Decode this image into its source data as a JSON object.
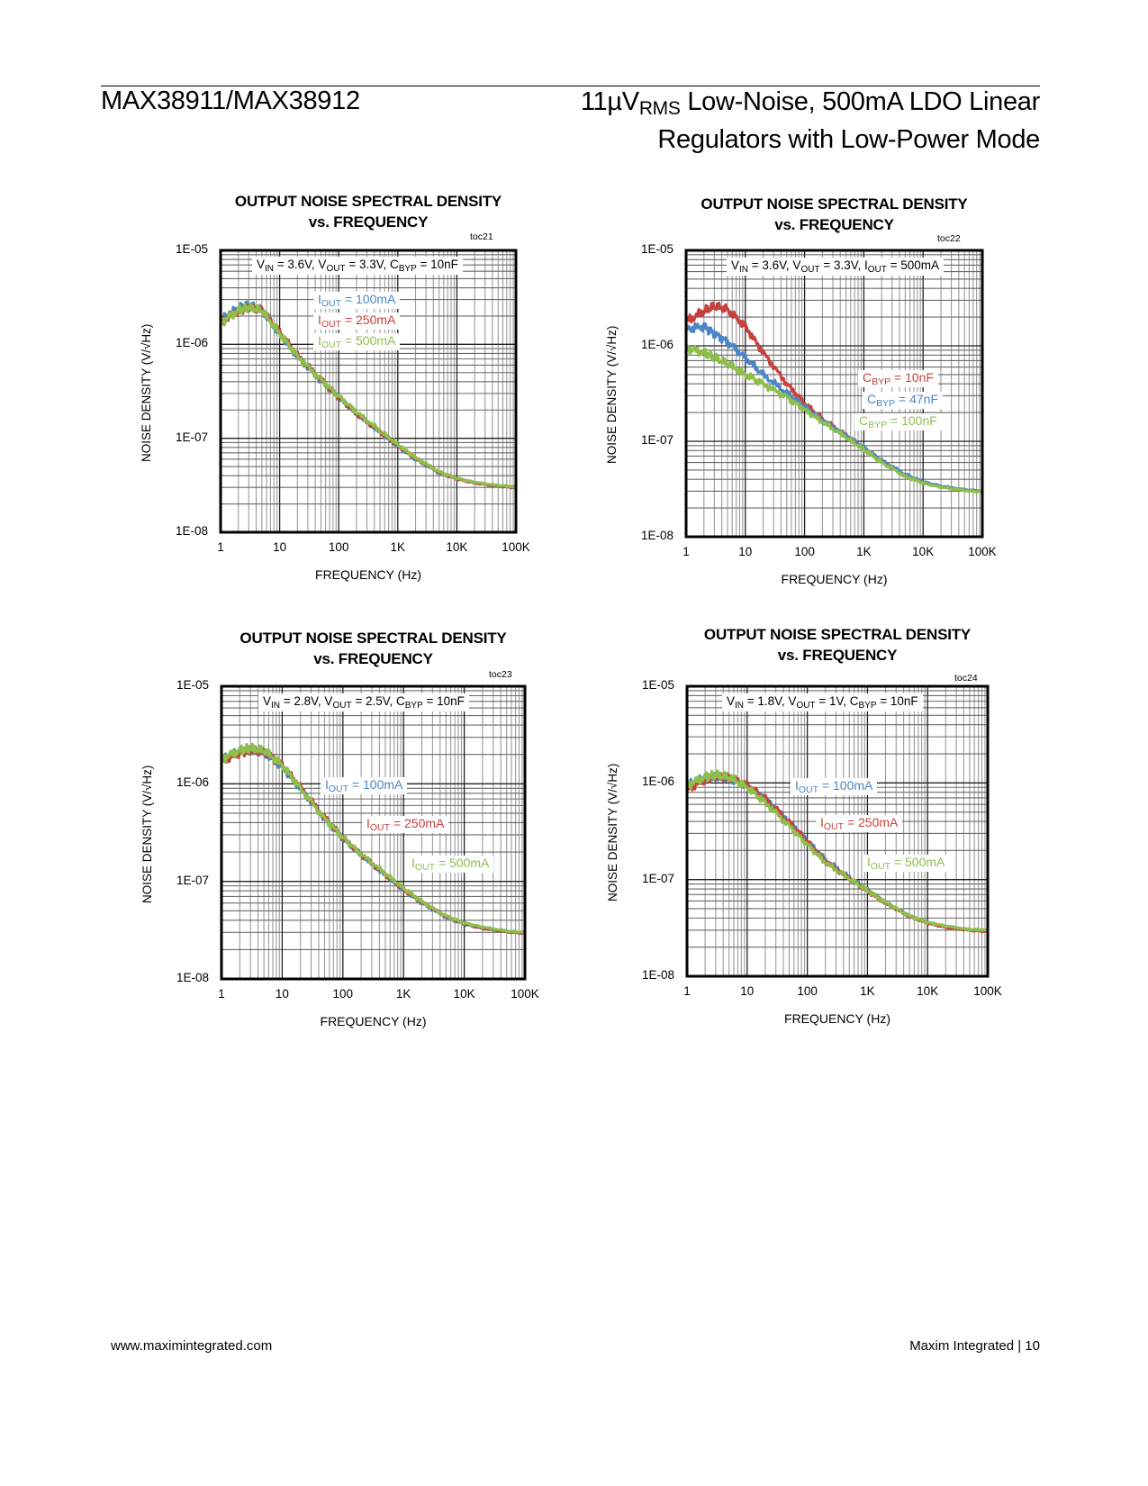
{
  "header": {
    "part_number": "MAX38911/MAX38912",
    "title_prefix": "11µV",
    "title_sub": "RMS",
    "title_rest_line1": " Low-Noise, 500mA LDO Linear",
    "title_line2": "Regulators with Low-Power Mode"
  },
  "footer": {
    "website": "www.maximintegrated.com",
    "company_page": "Maxim Integrated | 10"
  },
  "colors": {
    "blue": "#4a86c8",
    "red": "#c8403c",
    "green": "#8dbf4a"
  },
  "chart_data": [
    {
      "id": "toc21",
      "type": "line",
      "title_line1": "OUTPUT NOISE SPECTRAL DENSITY",
      "title_line2": "vs. FREQUENCY",
      "toc": "toc21",
      "xlabel": "FREQUENCY (Hz)",
      "ylabel": "NOISE DENSITY (V/√Hz)",
      "xscale": "log",
      "yscale": "log",
      "xlim": [
        1,
        100000
      ],
      "ylim": [
        1e-08,
        1e-05
      ],
      "xticks": [
        "1",
        "10",
        "100",
        "1K",
        "10K",
        "100K"
      ],
      "yticks": [
        "1E-05",
        "1E-06",
        "1E-07",
        "1E-08"
      ],
      "grid": true,
      "conditions": {
        "p1": "V",
        "s1": "IN",
        "t1": " = 3.6V, V",
        "s2": "OUT",
        "t2": " = 3.3V, C",
        "s3": "BYP",
        "t3": " = 10nF"
      },
      "legend_position": "upper-center",
      "series": [
        {
          "name_main": "I",
          "name_sub": "OUT",
          "name_rest": " = 100mA",
          "color": "blue",
          "x": [
            1,
            2,
            3,
            5,
            10,
            20,
            50,
            100,
            200,
            500,
            1000,
            2000,
            5000,
            10000,
            20000,
            50000,
            100000
          ],
          "y": [
            1.8e-06,
            2.4e-06,
            2.6e-06,
            2.3e-06,
            1.3e-06,
            7.5e-07,
            4.1e-07,
            2.7e-07,
            1.8e-07,
            1.15e-07,
            8.3e-08,
            6e-08,
            4.3e-08,
            3.7e-08,
            3.35e-08,
            3.1e-08,
            3e-08
          ]
        },
        {
          "name_main": "I",
          "name_sub": "OUT",
          "name_rest": " = 250mA",
          "color": "red",
          "x": [
            1,
            2,
            3,
            5,
            10,
            20,
            50,
            100,
            200,
            500,
            1000,
            2000,
            5000,
            10000,
            20000,
            50000,
            100000
          ],
          "y": [
            1.75e-06,
            2.3e-06,
            2.5e-06,
            2.35e-06,
            1.35e-06,
            7.6e-07,
            4.2e-07,
            2.75e-07,
            1.85e-07,
            1.18e-07,
            8.4e-08,
            6.1e-08,
            4.35e-08,
            3.7e-08,
            3.35e-08,
            3.1e-08,
            3e-08
          ]
        },
        {
          "name_main": "I",
          "name_sub": "OUT",
          "name_rest": " = 500mA",
          "color": "green",
          "x": [
            1,
            2,
            3,
            5,
            10,
            20,
            50,
            100,
            200,
            500,
            1000,
            2000,
            5000,
            10000,
            20000,
            50000,
            100000
          ],
          "y": [
            1.7e-06,
            2.3e-06,
            2.45e-06,
            2.3e-06,
            1.3e-06,
            7.5e-07,
            4.2e-07,
            2.8e-07,
            1.9e-07,
            1.2e-07,
            8.6e-08,
            6.2e-08,
            4.4e-08,
            3.75e-08,
            3.4e-08,
            3.15e-08,
            3.05e-08
          ]
        }
      ]
    },
    {
      "id": "toc22",
      "type": "line",
      "title_line1": "OUTPUT NOISE SPECTRAL DENSITY",
      "title_line2": "vs. FREQUENCY",
      "toc": "toc22",
      "xlabel": "FREQUENCY (Hz)",
      "ylabel": "NOISE DENSITY (V/√Hz)",
      "xscale": "log",
      "yscale": "log",
      "xlim": [
        1,
        100000
      ],
      "ylim": [
        1e-08,
        1e-05
      ],
      "xticks": [
        "1",
        "10",
        "100",
        "1K",
        "10K",
        "100K"
      ],
      "yticks": [
        "1E-05",
        "1E-06",
        "1E-07",
        "1E-08"
      ],
      "grid": true,
      "conditions": {
        "p1": "V",
        "s1": "IN",
        "t1": " = 3.6V, V",
        "s2": "OUT",
        "t2": " = 3.3V, I",
        "s3": "OUT",
        "t3": " = 500mA"
      },
      "legend_position": "right",
      "series": [
        {
          "name_main": "C",
          "name_sub": "BYP",
          "name_rest": " = 10nF",
          "color": "red",
          "x": [
            1,
            2,
            3,
            5,
            10,
            20,
            50,
            100,
            200,
            500,
            1000,
            2000,
            5000,
            10000,
            20000,
            50000,
            100000
          ],
          "y": [
            1.8e-06,
            2.3e-06,
            2.6e-06,
            2.4e-06,
            1.6e-06,
            8.5e-07,
            4e-07,
            2.5e-07,
            1.7e-07,
            1.15e-07,
            8.5e-08,
            6.2e-08,
            4.4e-08,
            3.7e-08,
            3.35e-08,
            3.1e-08,
            3e-08
          ]
        },
        {
          "name_main": "C",
          "name_sub": "BYP",
          "name_rest": " = 47nF",
          "color": "blue",
          "x": [
            1,
            2,
            3,
            5,
            10,
            20,
            50,
            100,
            200,
            500,
            1000,
            2000,
            5000,
            10000,
            20000,
            50000,
            100000
          ],
          "y": [
            1.5e-06,
            1.6e-06,
            1.35e-06,
            1.1e-06,
            7.5e-07,
            5e-07,
            3.2e-07,
            2.3e-07,
            1.65e-07,
            1.15e-07,
            8.6e-08,
            6.3e-08,
            4.5e-08,
            3.75e-08,
            3.4e-08,
            3.1e-08,
            3e-08
          ]
        },
        {
          "name_main": "C",
          "name_sub": "BYP",
          "name_rest": " = 100nF",
          "color": "green",
          "x": [
            1,
            2,
            3,
            5,
            10,
            20,
            50,
            100,
            200,
            500,
            1000,
            2000,
            5000,
            10000,
            20000,
            50000,
            100000
          ],
          "y": [
            9.5e-07,
            8.5e-07,
            7.5e-07,
            6.5e-07,
            5e-07,
            4e-07,
            2.9e-07,
            2.15e-07,
            1.6e-07,
            1.1e-07,
            8.2e-08,
            6e-08,
            4.3e-08,
            3.65e-08,
            3.3e-08,
            3.05e-08,
            2.95e-08
          ]
        }
      ]
    },
    {
      "id": "toc23",
      "type": "line",
      "title_line1": "OUTPUT NOISE SPECTRAL DENSITY",
      "title_line2": "vs. FREQUENCY",
      "toc": "toc23",
      "xlabel": "FREQUENCY (Hz)",
      "ylabel": "NOISE DENSITY (V/√Hz)",
      "xscale": "log",
      "yscale": "log",
      "xlim": [
        1,
        100000
      ],
      "ylim": [
        1e-08,
        1e-05
      ],
      "xticks": [
        "1",
        "10",
        "100",
        "1K",
        "10K",
        "100K"
      ],
      "yticks": [
        "1E-05",
        "1E-06",
        "1E-07",
        "1E-08"
      ],
      "grid": true,
      "conditions": {
        "p1": "V",
        "s1": "IN",
        "t1": " = 2.8V, V",
        "s2": "OUT",
        "t2": " = 2.5V, C",
        "s3": "BYP",
        "t3": " = 10nF"
      },
      "legend_position": "staggered-right",
      "series": [
        {
          "name_main": "I",
          "name_sub": "OUT",
          "name_rest": " = 100mA",
          "color": "blue",
          "x": [
            1,
            2,
            3,
            5,
            10,
            20,
            50,
            100,
            200,
            500,
            1000,
            2000,
            5000,
            10000,
            20000,
            50000,
            100000
          ],
          "y": [
            1.75e-06,
            2.1e-06,
            2.2e-06,
            2.1e-06,
            1.5e-06,
            9e-07,
            4.4e-07,
            2.75e-07,
            1.85e-07,
            1.15e-07,
            8.2e-08,
            6e-08,
            4.3e-08,
            3.65e-08,
            3.3e-08,
            3.05e-08,
            2.95e-08
          ]
        },
        {
          "name_main": "I",
          "name_sub": "OUT",
          "name_rest": " = 250mA",
          "color": "red",
          "x": [
            1,
            2,
            3,
            5,
            10,
            20,
            50,
            100,
            200,
            500,
            1000,
            2000,
            5000,
            10000,
            20000,
            50000,
            100000
          ],
          "y": [
            1.7e-06,
            2.1e-06,
            2.25e-06,
            2.15e-06,
            1.55e-06,
            9.2e-07,
            4.5e-07,
            2.8e-07,
            1.9e-07,
            1.18e-07,
            8.3e-08,
            6.1e-08,
            4.35e-08,
            3.7e-08,
            3.3e-08,
            3.05e-08,
            2.95e-08
          ]
        },
        {
          "name_main": "I",
          "name_sub": "OUT",
          "name_rest": " = 500mA",
          "color": "green",
          "x": [
            1,
            2,
            3,
            5,
            10,
            20,
            50,
            100,
            200,
            500,
            1000,
            2000,
            5000,
            10000,
            20000,
            50000,
            100000
          ],
          "y": [
            1.8e-06,
            2.2e-06,
            2.3e-06,
            2.2e-06,
            1.55e-06,
            9e-07,
            4.4e-07,
            2.8e-07,
            1.9e-07,
            1.2e-07,
            8.5e-08,
            6.2e-08,
            4.4e-08,
            3.75e-08,
            3.4e-08,
            3.1e-08,
            3e-08
          ]
        }
      ]
    },
    {
      "id": "toc24",
      "type": "line",
      "title_line1": "OUTPUT NOISE SPECTRAL DENSITY",
      "title_line2": "vs. FREQUENCY",
      "toc": "toc24",
      "xlabel": "FREQUENCY (Hz)",
      "ylabel": "NOISE DENSITY (V/√Hz)",
      "xscale": "log",
      "yscale": "log",
      "xlim": [
        1,
        100000
      ],
      "ylim": [
        1e-08,
        1e-05
      ],
      "xticks": [
        "1",
        "10",
        "100",
        "1K",
        "10K",
        "100K"
      ],
      "yticks": [
        "1E-05",
        "1E-06",
        "1E-07",
        "1E-08"
      ],
      "grid": true,
      "conditions": {
        "p1": "V",
        "s1": "IN",
        "t1": " = 1.8V, V",
        "s2": "OUT",
        "t2": " = 1V, C",
        "s3": "BYP",
        "t3": " = 10nF"
      },
      "legend_position": "staggered-right",
      "series": [
        {
          "name_main": "I",
          "name_sub": "OUT",
          "name_rest": " = 100mA",
          "color": "blue",
          "x": [
            1,
            2,
            3,
            5,
            10,
            20,
            50,
            100,
            200,
            500,
            1000,
            2000,
            5000,
            10000,
            20000,
            50000,
            100000
          ],
          "y": [
            9.5e-07,
            1.1e-06,
            1.15e-06,
            1.1e-06,
            9.5e-07,
            7e-07,
            4e-07,
            2.5e-07,
            1.6e-07,
            1.05e-07,
            7.8e-08,
            5.8e-08,
            4.2e-08,
            3.6e-08,
            3.25e-08,
            3e-08,
            2.95e-08
          ]
        },
        {
          "name_main": "I",
          "name_sub": "OUT",
          "name_rest": " = 250mA",
          "color": "red",
          "x": [
            1,
            2,
            3,
            5,
            10,
            20,
            50,
            100,
            200,
            500,
            1000,
            2000,
            5000,
            10000,
            20000,
            50000,
            100000
          ],
          "y": [
            8.5e-07,
            1.1e-06,
            1.2e-06,
            1.15e-06,
            9.5e-07,
            6.8e-07,
            3.9e-07,
            2.45e-07,
            1.55e-07,
            1.03e-07,
            7.6e-08,
            5.7e-08,
            4.15e-08,
            3.55e-08,
            3.2e-08,
            3e-08,
            2.9e-08
          ]
        },
        {
          "name_main": "I",
          "name_sub": "OUT",
          "name_rest": " = 500mA",
          "color": "green",
          "x": [
            1,
            2,
            3,
            5,
            10,
            20,
            50,
            100,
            200,
            500,
            1000,
            2000,
            5000,
            10000,
            20000,
            50000,
            100000
          ],
          "y": [
            9.5e-07,
            1.15e-06,
            1.2e-06,
            1.15e-06,
            9e-07,
            6.3e-07,
            3.6e-07,
            2.3e-07,
            1.5e-07,
            1.02e-07,
            7.7e-08,
            5.8e-08,
            4.2e-08,
            3.6e-08,
            3.3e-08,
            3.05e-08,
            3e-08
          ]
        }
      ]
    }
  ]
}
